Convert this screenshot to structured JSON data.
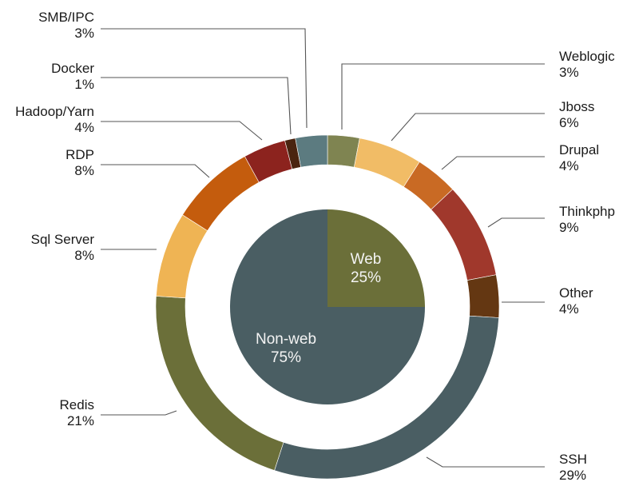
{
  "chart_data": {
    "type": "pie",
    "title": "",
    "outer_ring": {
      "slices": [
        {
          "label": "Weblogic",
          "value": 3,
          "text": "3%",
          "color": "#7f8451"
        },
        {
          "label": "Jboss",
          "value": 6,
          "text": "6%",
          "color": "#f1bc66"
        },
        {
          "label": "Drupal",
          "value": 4,
          "text": "4%",
          "color": "#c96a24"
        },
        {
          "label": "Thinkphp",
          "value": 9,
          "text": "9%",
          "color": "#a0382c"
        },
        {
          "label": "Other",
          "value": 4,
          "text": "4%",
          "color": "#643712"
        },
        {
          "label": "SSH",
          "value": 29,
          "text": "29%",
          "color": "#4a5e63"
        },
        {
          "label": "Redis",
          "value": 21,
          "text": "21%",
          "color": "#6b6f39"
        },
        {
          "label": "Sql Server",
          "value": 8,
          "text": "8%",
          "color": "#efb454"
        },
        {
          "label": "RDP",
          "value": 8,
          "text": "8%",
          "color": "#c45c0d"
        },
        {
          "label": "Hadoop/Yarn",
          "value": 4,
          "text": "4%",
          "color": "#8c231e"
        },
        {
          "label": "Docker",
          "value": 1,
          "text": "1%",
          "color": "#4a2410"
        },
        {
          "label": "SMB/IPC",
          "value": 3,
          "text": "3%",
          "color": "#5c7b80"
        }
      ]
    },
    "inner_pie": {
      "slices": [
        {
          "label": "Web",
          "value": 25,
          "text": "25%",
          "color": "#6b6f39"
        },
        {
          "label": "Non-web",
          "value": 75,
          "text": "75%",
          "color": "#4a5e63"
        }
      ]
    }
  }
}
